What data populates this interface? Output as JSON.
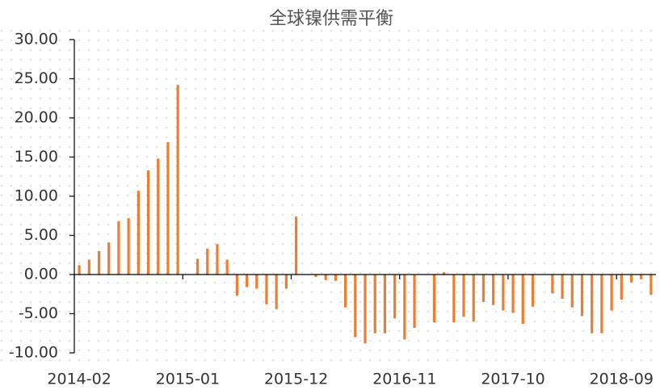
{
  "chart_data": {
    "type": "bar",
    "title": "全球镍供需平衡",
    "categories": [
      "2014-02",
      null,
      null,
      null,
      null,
      null,
      null,
      null,
      null,
      null,
      null,
      "2015-01",
      null,
      null,
      null,
      null,
      null,
      null,
      null,
      null,
      null,
      null,
      "2015-12",
      null,
      null,
      null,
      null,
      null,
      null,
      null,
      null,
      null,
      null,
      "2016-11",
      null,
      null,
      null,
      null,
      null,
      null,
      null,
      null,
      null,
      null,
      "2017-10",
      null,
      null,
      null,
      null,
      null,
      null,
      null,
      null,
      null,
      null,
      "2018-09",
      null,
      null,
      null
    ],
    "values": [
      1.2,
      1.9,
      3.0,
      4.1,
      6.8,
      7.2,
      10.7,
      13.3,
      14.8,
      16.9,
      24.2,
      0,
      2.0,
      3.3,
      3.9,
      1.9,
      -2.7,
      -1.6,
      -1.8,
      -3.8,
      -4.4,
      -1.8,
      7.4,
      0,
      -0.3,
      -0.7,
      -0.8,
      -4.2,
      -8.0,
      -8.8,
      -7.5,
      -7.5,
      -5.6,
      -8.3,
      -6.8,
      0,
      -6.1,
      0.3,
      -6.1,
      -5.4,
      -6.0,
      -3.5,
      -3.9,
      -4.6,
      -4.9,
      -6.3,
      -4.1,
      0,
      -2.4,
      -3.1,
      -4.2,
      -5.3,
      -7.5,
      -7.5,
      -4.6,
      -3.2,
      -1.0,
      -0.6,
      -2.6
    ],
    "color": "#ed7d31",
    "ylim": [
      -10,
      30
    ],
    "yticks": [
      {
        "value": -10,
        "label": "-10.00"
      },
      {
        "value": -5,
        "label": "-5.00"
      },
      {
        "value": 0,
        "label": "0.00"
      },
      {
        "value": 5,
        "label": "5.00"
      },
      {
        "value": 10,
        "label": "10.00"
      },
      {
        "value": 15,
        "label": "15.00"
      },
      {
        "value": 20,
        "label": "20.00"
      },
      {
        "value": 25,
        "label": "25.00"
      },
      {
        "value": 30,
        "label": "30.00"
      }
    ]
  }
}
